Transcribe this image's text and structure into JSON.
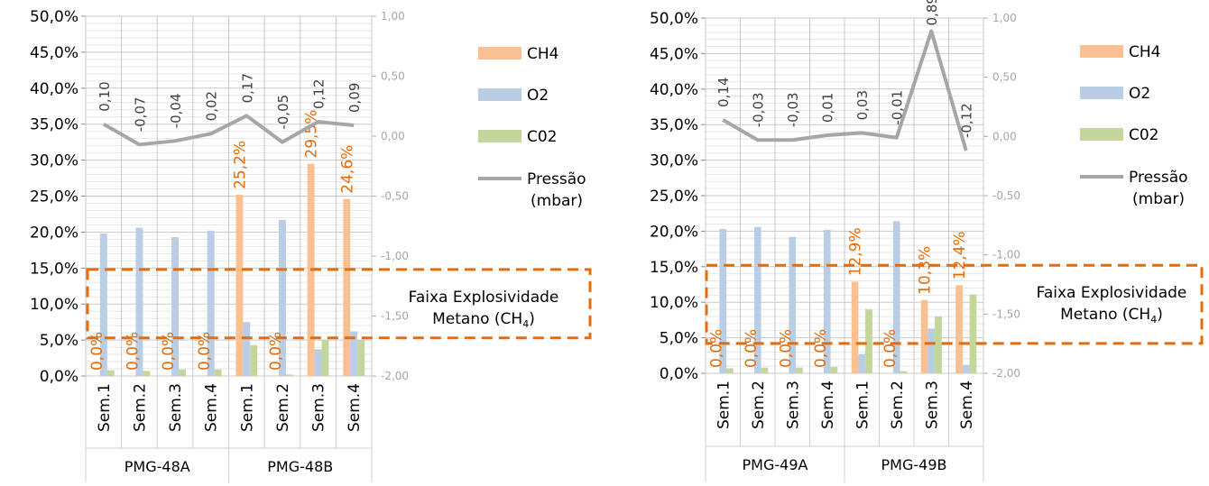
{
  "charts": [
    {
      "type": "bar",
      "left_axis": {
        "min": 0,
        "max": 50,
        "step": 5,
        "format": "percent"
      },
      "right_axis": {
        "min": -2.0,
        "max": 1.0,
        "step": 0.5
      },
      "groups": [
        {
          "label": "PMG-48A",
          "categories": [
            "Sem.1",
            "Sem.2",
            "Sem.3",
            "Sem.4"
          ]
        },
        {
          "label": "PMG-48B",
          "categories": [
            "Sem.1",
            "Sem.2",
            "Sem.3",
            "Sem.4"
          ]
        }
      ],
      "series": [
        {
          "name": "CH4",
          "color": "#fac090",
          "values": [
            0.0,
            0.0,
            0.0,
            0.0,
            25.2,
            0.0,
            29.5,
            24.6
          ],
          "labels": [
            "0,0%",
            "0,0%",
            "0,0%",
            "0,0%",
            "25,2%",
            "0,0%",
            "29,5%",
            "24,6%"
          ]
        },
        {
          "name": "O2",
          "color": "#b9cde5",
          "values": [
            19.8,
            20.6,
            19.3,
            20.2,
            7.5,
            21.7,
            3.7,
            6.2
          ]
        },
        {
          "name": "C02",
          "color": "#c3d69b",
          "values": [
            0.8,
            0.7,
            0.9,
            0.9,
            4.3,
            0.2,
            5.0,
            5.0
          ]
        }
      ],
      "line": {
        "name": "Pressão",
        "name2": "(mbar)",
        "color": "#a6a6a6",
        "values": [
          0.1,
          -0.07,
          -0.04,
          0.02,
          0.17,
          -0.05,
          0.12,
          0.09
        ],
        "labels": [
          "0,10",
          "-0,07",
          "-0,04",
          "0,02",
          "0,17",
          "-0,05",
          "0,12",
          "0,09"
        ]
      },
      "band": {
        "from": 5.3,
        "to": 14.8,
        "text1": "Faixa Explosividade",
        "text2": "Metano (CH",
        "sub": "4",
        "text3": ")"
      }
    },
    {
      "type": "bar",
      "left_axis": {
        "min": 0,
        "max": 50,
        "step": 5,
        "format": "percent"
      },
      "right_axis": {
        "min": -2.0,
        "max": 1.0,
        "step": 0.5
      },
      "groups": [
        {
          "label": "PMG-49A",
          "categories": [
            "Sem.1",
            "Sem.2",
            "Sem.3",
            "Sem.4"
          ]
        },
        {
          "label": "PMG-49B",
          "categories": [
            "Sem.1",
            "Sem.2",
            "Sem.3",
            "Sem.4"
          ]
        }
      ],
      "series": [
        {
          "name": "CH4",
          "color": "#fac090",
          "values": [
            0.0,
            0.0,
            0.0,
            0.0,
            12.9,
            0.0,
            10.3,
            12.4
          ],
          "labels": [
            "0,0%",
            "0,0%",
            "0,0%",
            "0,0%",
            "12,9%",
            "0,0%",
            "10,3%",
            "12,4%"
          ]
        },
        {
          "name": "O2",
          "color": "#b9cde5",
          "values": [
            20.3,
            20.6,
            19.2,
            20.2,
            2.7,
            21.4,
            6.3,
            1.2
          ]
        },
        {
          "name": "C02",
          "color": "#c3d69b",
          "values": [
            0.7,
            0.8,
            0.8,
            0.9,
            9.0,
            0.3,
            8.0,
            11.1
          ]
        }
      ],
      "line": {
        "name": "Pressão",
        "name2": "(mbar)",
        "color": "#a6a6a6",
        "values": [
          0.14,
          -0.03,
          -0.03,
          0.01,
          0.03,
          -0.01,
          0.89,
          -0.12
        ],
        "labels": [
          "0,14",
          "-0,03",
          "-0,03",
          "0,01",
          "0,03",
          "-0,01",
          "0,89",
          "-0,12"
        ]
      },
      "band": {
        "from": 4.2,
        "to": 15.2,
        "text1": "Faixa Explosividade",
        "text2": "Metano (CH",
        "sub": "4",
        "text3": ")"
      }
    }
  ]
}
